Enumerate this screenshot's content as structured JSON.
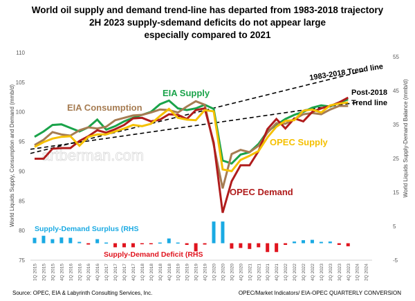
{
  "title_lines": [
    "World oil supply and demand trend-line has departed from 1983-2018 trajectory",
    "2H 2023 supply-sdemand deficits do not appear large",
    "especially compared to 2021"
  ],
  "footer": {
    "source": "Source:  OPEC, EIA & Labyrinth Consulting Services, Inc.",
    "note": "OPEC/Market Indicators/ EIA-OPEC QUARTERLY CONVERSION"
  },
  "watermark": "artberman.com",
  "chart_data": {
    "type": "line",
    "title": "World oil supply and demand trend-line has departed from 1983-2018 trajectory",
    "ylabel": "World Liquids Supply, Consumption and Demand (mmb/d)",
    "y2label": "World Liquids Supply-Demand Balance (mmb/d)",
    "ylim": [
      75,
      110
    ],
    "yticks": [
      75,
      80,
      85,
      90,
      95,
      100,
      105,
      110
    ],
    "y2lim": [
      -5,
      55
    ],
    "y2ticks": [
      -5,
      5,
      15,
      25,
      35,
      45,
      55
    ],
    "grid": false,
    "categories": [
      "1Q 2015",
      "2Q 2015",
      "3Q 2015",
      "4Q 2015",
      "1Q 2016",
      "2Q 2016",
      "3Q 2016",
      "4Q 2016",
      "1Q 2017",
      "2Q 2017",
      "3Q 2017",
      "4Q 2017",
      "1Q 2018",
      "2Q 2018",
      "3Q 2018",
      "4Q 2018",
      "1Q 2019",
      "2Q 2019",
      "3Q 2019",
      "4Q 2019",
      "1Q 2020",
      "2Q 2020",
      "3Q 2020",
      "4Q 2020",
      "1Q 2021",
      "2Q 2021",
      "3Q 2021",
      "4Q 2021",
      "1Q 2022",
      "2Q 2022",
      "3Q 2022",
      "4Q 2022",
      "1Q 2023",
      "2Q 2023",
      "3Q 2023",
      "4Q 2023",
      "1Q 2024",
      "2Q 2024"
    ],
    "series": [
      {
        "name": "EIA Supply",
        "label": "EIA Supply",
        "color": "#1aa34a",
        "axis": "left",
        "values": [
          95.8,
          96.7,
          97.8,
          97.9,
          97.3,
          96.7,
          97.4,
          98.7,
          97.0,
          97.6,
          98.4,
          99.0,
          99.5,
          100.0,
          101.3,
          101.9,
          100.6,
          100.3,
          100.6,
          101.2,
          100.5,
          91.8,
          91.3,
          92.8,
          93.2,
          94.6,
          96.7,
          97.8,
          98.8,
          99.5,
          100.0,
          100.7,
          101.1,
          100.9,
          101.6,
          102.1
        ]
      },
      {
        "name": "EIA Consumption",
        "label": "EIA Consumption",
        "color": "#a67c52",
        "axis": "left",
        "values": [
          94.4,
          95.3,
          96.6,
          96.2,
          96.0,
          96.9,
          97.4,
          97.2,
          97.5,
          98.6,
          99.0,
          99.4,
          99.5,
          99.9,
          100.4,
          100.3,
          99.9,
          100.9,
          101.8,
          101.2,
          94.4,
          87.1,
          92.9,
          93.6,
          93.2,
          94.3,
          96.5,
          98.1,
          98.0,
          98.8,
          99.6,
          99.8,
          99.6,
          100.4,
          101.0,
          101.0
        ]
      },
      {
        "name": "OPEC Supply",
        "label": "OPEC Supply",
        "color": "#f5c000",
        "axis": "left",
        "values": [
          94.1,
          94.9,
          95.5,
          95.8,
          95.9,
          94.3,
          95.8,
          96.2,
          96.2,
          96.7,
          97.2,
          97.8,
          97.6,
          98.0,
          99.3,
          100.5,
          99.0,
          98.7,
          98.6,
          100.3,
          100.1,
          90.3,
          90.0,
          91.9,
          92.6,
          93.4,
          95.7,
          97.5,
          98.5,
          98.6,
          100.2,
          100.4,
          99.9,
          101.1,
          101.4,
          101.6
        ]
      },
      {
        "name": "OPEC Demand",
        "label": "OPEC Demand",
        "color": "#b01c1c",
        "axis": "left",
        "values": [
          92.1,
          92.1,
          93.8,
          93.9,
          93.9,
          95.1,
          95.9,
          96.9,
          96.5,
          97.1,
          97.8,
          98.9,
          99.0,
          98.4,
          98.7,
          99.6,
          99.5,
          98.8,
          100.3,
          100.6,
          94.8,
          83.0,
          88.3,
          91.0,
          91.0,
          93.4,
          97.1,
          98.8,
          97.2,
          98.9,
          98.4,
          100.0,
          100.6,
          101.0,
          101.6,
          102.4
        ]
      },
      {
        "name": "1983-2018 Trend line",
        "label": "1983-2018 Trend line",
        "color": "#000000",
        "dashed": true,
        "axis": "left",
        "x_range": [
          "1Q 2015",
          "2Q 2024"
        ],
        "values_at_ends": [
          93.0,
          107.0
        ]
      },
      {
        "name": "Post-2018 Trend line",
        "label_lines": [
          "Post-2018",
          "Trend line"
        ],
        "color": "#000000",
        "dashed": true,
        "axis": "left",
        "x_range": [
          "1Q 2015",
          "1Q 2024"
        ],
        "values_at_ends": [
          93.7,
          101.6
        ]
      }
    ],
    "balance": {
      "axis": "right",
      "surplus_label": "Supply-Demand Surplus (RHS",
      "deficit_label": "Supply-Demand Deficit (RHS",
      "surplus_color": "#1aaae3",
      "deficit_color": "#e0141e",
      "values": [
        1.6,
        2.2,
        1.2,
        1.7,
        1.6,
        0.4,
        -0.4,
        1.2,
        0.2,
        -1.2,
        -1.2,
        -1.2,
        -0.3,
        -0.3,
        0.2,
        1.4,
        0.2,
        -0.5,
        -2.4,
        -0.4,
        6.4,
        6.4,
        -1.6,
        -1.4,
        -1.7,
        -1.2,
        -2.6,
        -2.6,
        -0.5,
        0.5,
        0.9,
        1.0,
        0.4,
        0.5,
        -0.5,
        -0.9
      ]
    }
  }
}
